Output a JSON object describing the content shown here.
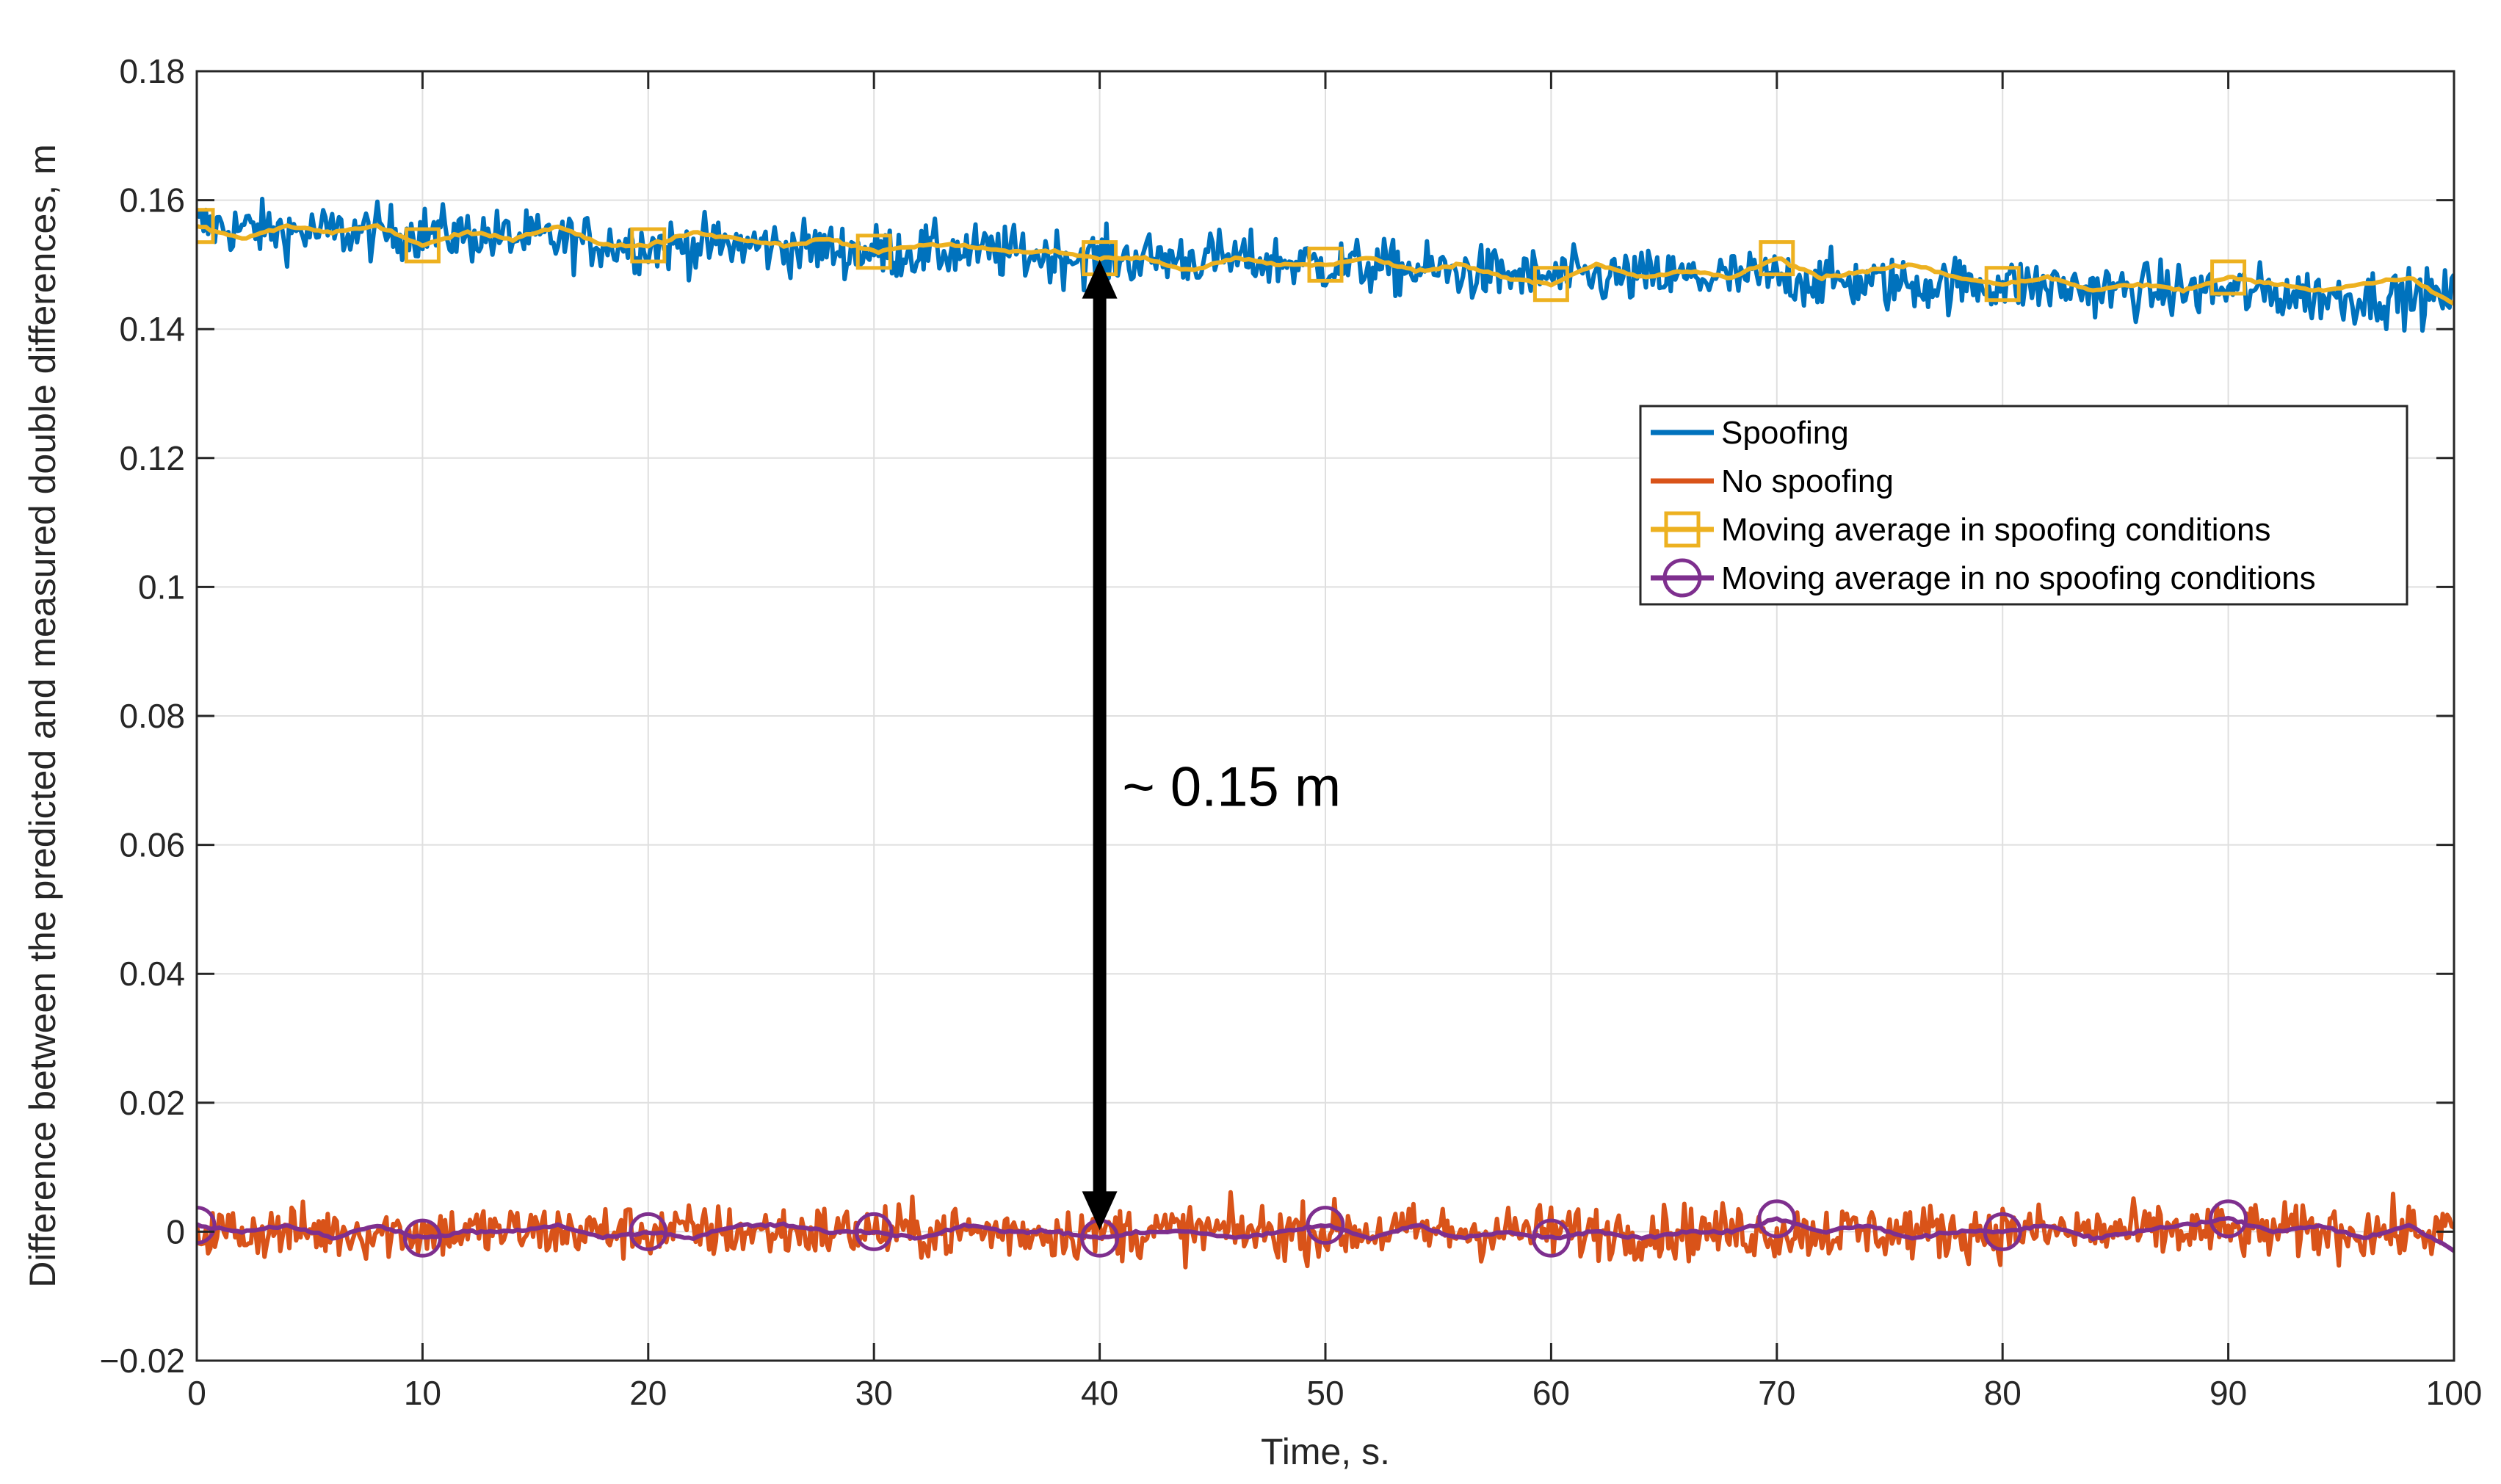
{
  "chart_data": {
    "type": "line",
    "title": "",
    "xlabel": "Time, s.",
    "ylabel": "Difference between the predicted and measured double differences, m",
    "xlim": [
      0,
      100
    ],
    "ylim": [
      -0.02,
      0.18
    ],
    "grid": true,
    "legend_position": "top-right",
    "x_ticks": [
      0,
      10,
      20,
      30,
      40,
      50,
      60,
      70,
      80,
      90,
      100
    ],
    "x_tick_labels": [
      "0",
      "10",
      "20",
      "30",
      "40",
      "50",
      "60",
      "70",
      "80",
      "90",
      "100"
    ],
    "y_ticks": [
      -0.02,
      0,
      0.02,
      0.04,
      0.06,
      0.08,
      0.1,
      0.12,
      0.14,
      0.16,
      0.18
    ],
    "y_tick_labels": [
      "−0.02",
      "0",
      "0.02",
      "0.04",
      "0.06",
      "0.08",
      "0.1",
      "0.12",
      "0.14",
      "0.16",
      "0.18"
    ],
    "series": [
      {
        "name": "Spoofing",
        "color": "#0072BD",
        "style": "noisy-line",
        "x": [
          0,
          5,
          10,
          15,
          20,
          25,
          30,
          35,
          40,
          45,
          50,
          55,
          60,
          65,
          70,
          75,
          80,
          85,
          90,
          95,
          100
        ],
        "y": [
          0.156,
          0.155,
          0.155,
          0.154,
          0.153,
          0.153,
          0.152,
          0.152,
          0.151,
          0.151,
          0.15,
          0.149,
          0.148,
          0.148,
          0.148,
          0.147,
          0.147,
          0.146,
          0.146,
          0.145,
          0.145
        ],
        "noise_amplitude": 0.0045
      },
      {
        "name": "No spoofing",
        "color": "#D95319",
        "style": "noisy-line",
        "x": [
          0,
          10,
          20,
          30,
          40,
          50,
          60,
          70,
          80,
          90,
          100
        ],
        "y": [
          0,
          0,
          0,
          0,
          0,
          0,
          0,
          0,
          0,
          0,
          0
        ],
        "noise_amplitude": 0.0045
      },
      {
        "name": "Moving average in spoofing conditions",
        "color": "#EDB120",
        "marker": "square",
        "x": [
          0,
          2,
          4,
          6,
          8,
          10,
          12,
          14,
          16,
          18,
          20,
          22,
          24,
          26,
          28,
          30,
          32,
          34,
          36,
          38,
          40,
          42,
          44,
          46,
          48,
          50,
          52,
          54,
          56,
          58,
          60,
          62,
          64,
          66,
          68,
          70,
          72,
          74,
          76,
          78,
          80,
          82,
          84,
          86,
          88,
          90,
          92,
          94,
          96,
          98,
          100
        ],
        "y": [
          0.156,
          0.154,
          0.156,
          0.155,
          0.156,
          0.153,
          0.155,
          0.154,
          0.156,
          0.153,
          0.153,
          0.155,
          0.154,
          0.153,
          0.154,
          0.152,
          0.153,
          0.153,
          0.152,
          0.152,
          0.151,
          0.151,
          0.149,
          0.151,
          0.15,
          0.15,
          0.151,
          0.149,
          0.15,
          0.148,
          0.147,
          0.15,
          0.148,
          0.149,
          0.148,
          0.151,
          0.148,
          0.149,
          0.15,
          0.148,
          0.147,
          0.148,
          0.146,
          0.147,
          0.146,
          0.148,
          0.147,
          0.146,
          0.147,
          0.148,
          0.144
        ],
        "marker_x": [
          0,
          10,
          20,
          30,
          40,
          50,
          60,
          70,
          80,
          90
        ],
        "marker_y": [
          0.156,
          0.153,
          0.153,
          0.152,
          0.151,
          0.15,
          0.147,
          0.151,
          0.147,
          0.148
        ]
      },
      {
        "name": "Moving average in no spoofing conditions",
        "color": "#7E2F8E",
        "marker": "circle",
        "x": [
          0,
          2,
          4,
          6,
          8,
          10,
          12,
          14,
          16,
          18,
          20,
          22,
          24,
          26,
          28,
          30,
          32,
          34,
          36,
          38,
          40,
          42,
          44,
          46,
          48,
          50,
          52,
          54,
          56,
          58,
          60,
          62,
          64,
          66,
          68,
          70,
          72,
          74,
          76,
          78,
          80,
          82,
          84,
          86,
          88,
          90,
          92,
          94,
          96,
          98,
          100
        ],
        "y": [
          0.001,
          0.0,
          0.001,
          -0.001,
          0.001,
          -0.001,
          0.0,
          0.0,
          0.001,
          -0.001,
          0.0,
          -0.001,
          0.001,
          0.001,
          0.0,
          0.0,
          -0.001,
          0.001,
          0.0,
          0.0,
          -0.001,
          0.0,
          0.0,
          -0.001,
          0.0,
          0.001,
          -0.001,
          0.001,
          -0.001,
          0.0,
          -0.001,
          0.0,
          -0.001,
          0.0,
          0.0,
          0.002,
          0.0,
          0.001,
          -0.001,
          0.0,
          0.0,
          0.001,
          -0.001,
          0.0,
          0.001,
          0.002,
          0.0,
          0.001,
          -0.001,
          0.001,
          -0.003
        ],
        "marker_x": [
          0,
          10,
          20,
          30,
          40,
          50,
          60,
          70,
          80,
          90
        ],
        "marker_y": [
          0.001,
          -0.001,
          0.0,
          0.0,
          -0.001,
          0.001,
          -0.001,
          0.002,
          0.0,
          0.002
        ]
      }
    ],
    "annotations": [
      {
        "type": "double-arrow",
        "x": 40,
        "y_from": 0.0,
        "y_to": 0.151
      },
      {
        "type": "text",
        "text": "~ 0.15 m",
        "x": 41,
        "y": 0.069
      }
    ]
  }
}
